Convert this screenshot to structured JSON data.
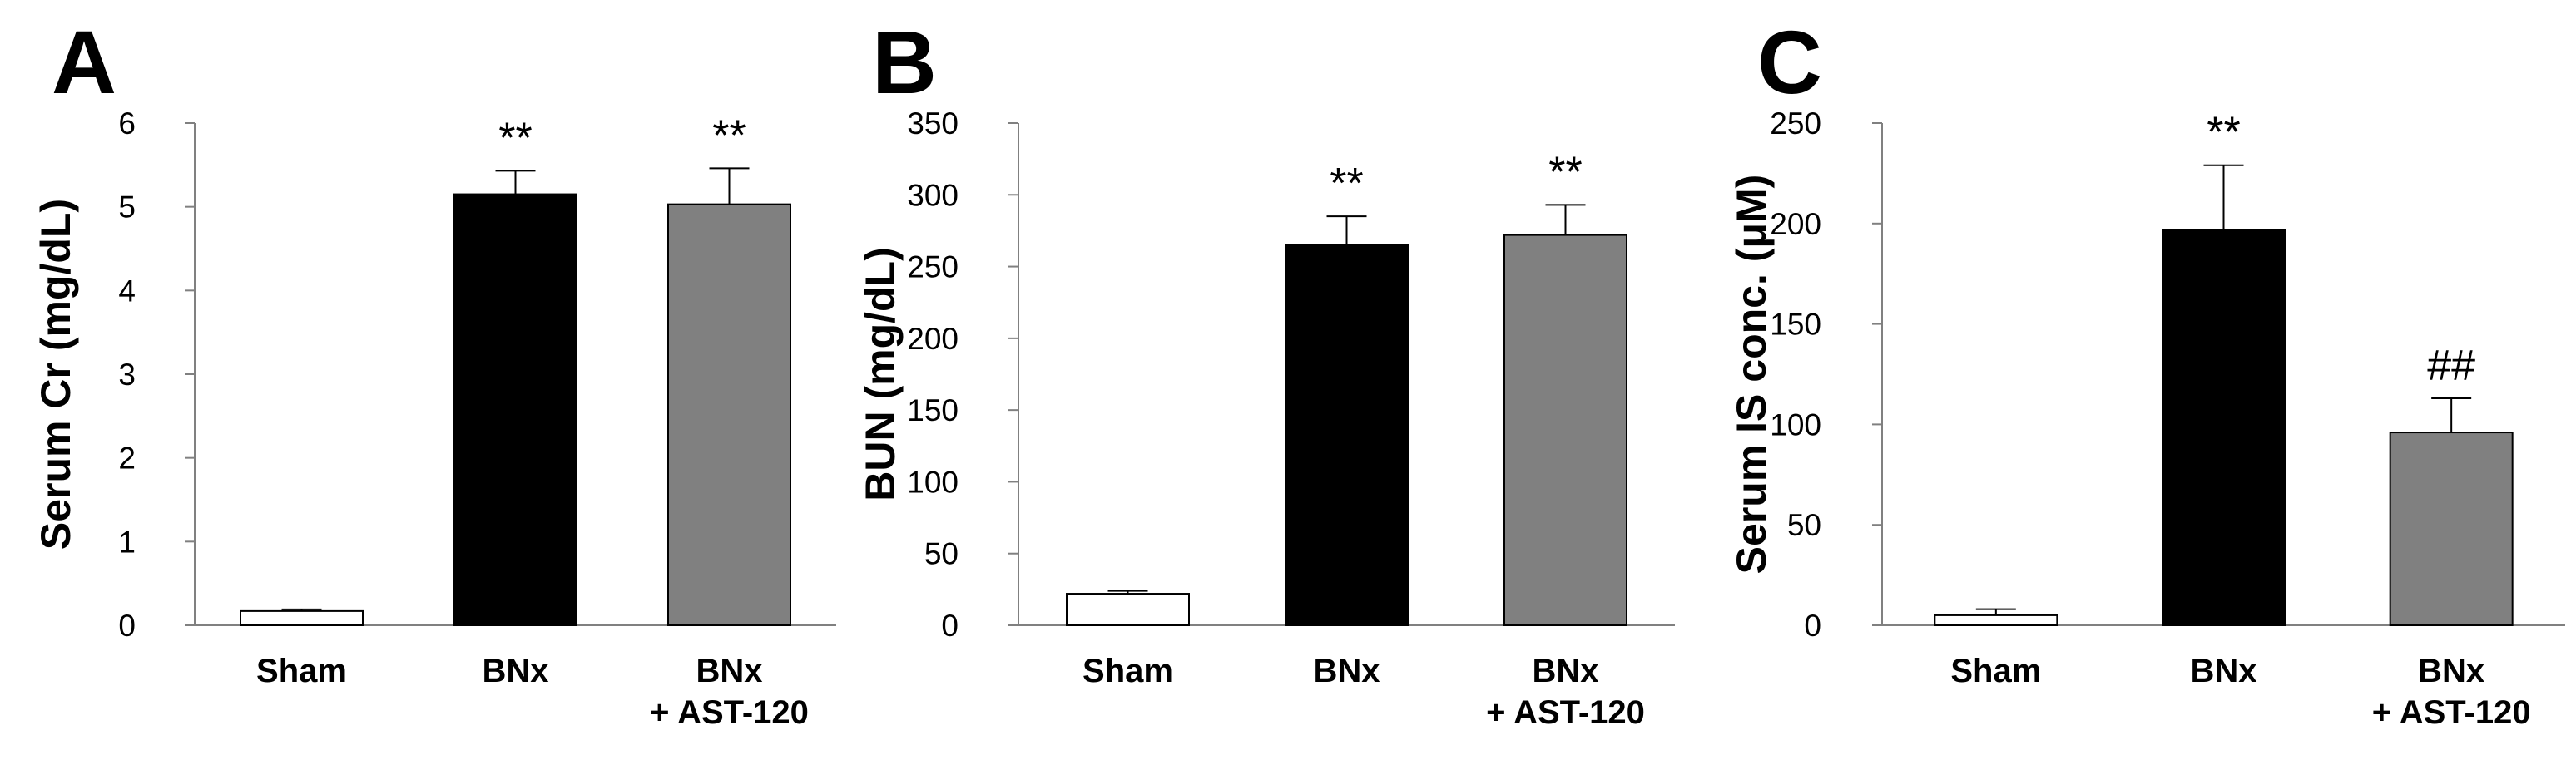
{
  "chart_data": [
    {
      "panel": "A",
      "type": "bar",
      "categories": [
        [
          "Sham"
        ],
        [
          "BNx"
        ],
        [
          "BNx",
          "+ AST-120"
        ]
      ],
      "values": [
        0.17,
        5.15,
        5.03
      ],
      "errors": [
        0.02,
        0.28,
        0.43
      ],
      "annotations": [
        "",
        "**",
        "**"
      ],
      "bar_colors": [
        "#ffffff",
        "#000000",
        "#808080"
      ],
      "xlabel": "",
      "ylabel": "Serum Cr (mg/dL)",
      "ylim": [
        0,
        6
      ],
      "yticks": [
        0,
        1,
        2,
        3,
        4,
        5,
        6
      ],
      "grid": false
    },
    {
      "panel": "B",
      "type": "bar",
      "categories": [
        [
          "Sham"
        ],
        [
          "BNx"
        ],
        [
          "BNx",
          "+ AST-120"
        ]
      ],
      "values": [
        22,
        265,
        272
      ],
      "errors": [
        2,
        20,
        21
      ],
      "annotations": [
        "",
        "**",
        "**"
      ],
      "bar_colors": [
        "#ffffff",
        "#000000",
        "#808080"
      ],
      "xlabel": "",
      "ylabel": "BUN (mg/dL)",
      "ylim": [
        0,
        350
      ],
      "yticks": [
        0,
        50,
        100,
        150,
        200,
        250,
        300,
        350
      ],
      "grid": false
    },
    {
      "panel": "C",
      "type": "bar",
      "categories": [
        [
          "Sham"
        ],
        [
          "BNx"
        ],
        [
          "BNx",
          "+ AST-120"
        ]
      ],
      "values": [
        5,
        197,
        96
      ],
      "errors": [
        3,
        32,
        17
      ],
      "annotations": [
        "",
        "**",
        "##"
      ],
      "bar_colors": [
        "#ffffff",
        "#000000",
        "#808080"
      ],
      "xlabel": "",
      "ylabel": "Serum IS conc. (μM)",
      "ylim": [
        0,
        250
      ],
      "yticks": [
        0,
        50,
        100,
        150,
        200,
        250
      ],
      "grid": false
    }
  ]
}
